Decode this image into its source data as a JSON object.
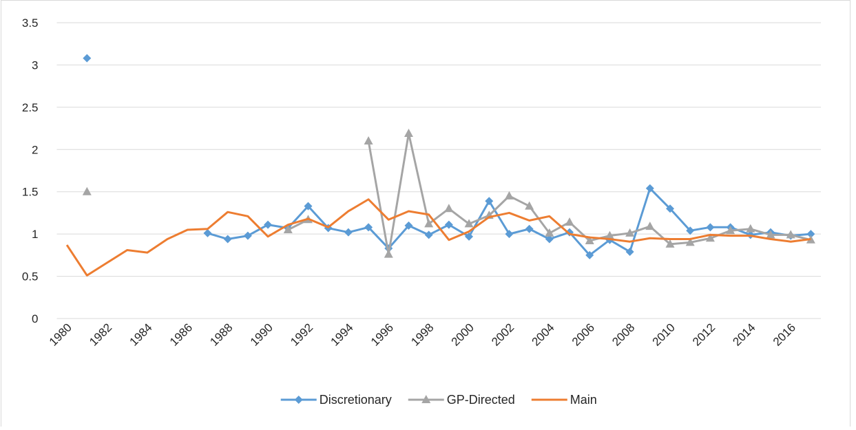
{
  "chart_data": {
    "type": "line",
    "categories": [
      "1980",
      null,
      "1982",
      null,
      "1984",
      null,
      "1986",
      null,
      "1988",
      null,
      "1990",
      null,
      "1992",
      null,
      "1994",
      null,
      "1996",
      null,
      "1998",
      null,
      "2000",
      null,
      "2002",
      null,
      "2004",
      null,
      "2006",
      null,
      "2008",
      null,
      "2010",
      null,
      "2012",
      null,
      "2014",
      null,
      "2016",
      null
    ],
    "series": [
      {
        "name": "Discretionary",
        "color": "#5b9bd5",
        "marker": "diamond",
        "values": [
          null,
          3.08,
          null,
          null,
          null,
          null,
          null,
          1.01,
          0.94,
          0.98,
          1.11,
          1.07,
          1.33,
          1.07,
          1.02,
          1.08,
          0.83,
          1.1,
          0.99,
          1.11,
          0.97,
          1.39,
          1.0,
          1.06,
          0.94,
          1.02,
          0.75,
          0.93,
          0.79,
          1.54,
          1.3,
          1.04,
          1.08,
          1.08,
          0.99,
          1.02,
          0.98,
          1.0
        ]
      },
      {
        "name": "GP-Directed",
        "color": "#a5a5a5",
        "marker": "triangle",
        "values": [
          null,
          1.5,
          null,
          null,
          null,
          null,
          null,
          null,
          null,
          null,
          null,
          1.05,
          1.17,
          null,
          null,
          2.1,
          0.76,
          2.19,
          1.12,
          1.3,
          1.12,
          1.22,
          1.45,
          1.33,
          1.01,
          1.14,
          0.92,
          0.98,
          1.01,
          1.09,
          0.88,
          0.9,
          0.95,
          1.04,
          1.06,
          0.99,
          0.99,
          0.93
        ]
      },
      {
        "name": "Main",
        "color": "#ed7d31",
        "marker": "none",
        "values": [
          0.87,
          0.51,
          0.66,
          0.81,
          0.78,
          0.94,
          1.05,
          1.06,
          1.26,
          1.21,
          0.97,
          1.11,
          1.18,
          1.08,
          1.27,
          1.41,
          1.17,
          1.27,
          1.23,
          0.93,
          1.03,
          1.2,
          1.25,
          1.16,
          1.21,
          1.0,
          0.96,
          0.94,
          0.91,
          0.95,
          0.94,
          0.94,
          0.99,
          0.98,
          0.98,
          0.94,
          0.91,
          0.94
        ]
      }
    ],
    "ylim": [
      0,
      3.5
    ],
    "yticks": [
      0,
      0.5,
      1,
      1.5,
      2,
      2.5,
      3,
      3.5
    ],
    "grid": true,
    "legend": "bottom"
  }
}
